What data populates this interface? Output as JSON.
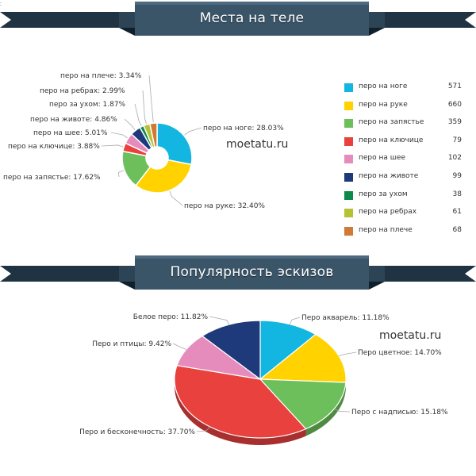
{
  "stray_mark": ":",
  "colors": {
    "banner": "#3a5468",
    "banner_tail": "#1f3343",
    "page_bg": "#ffffff"
  },
  "watermark": "moetatu.ru",
  "chart_data": [
    {
      "type": "pie",
      "variant": "donut",
      "title": "Места на теле",
      "watermark": "moetatu.ru",
      "slices": [
        {
          "name": "перо на ноге",
          "value": 571,
          "percent": 28.03,
          "label": "перо на ноге: 28.03%",
          "color": "#13b5e1"
        },
        {
          "name": "перо на руке",
          "value": 660,
          "percent": 32.4,
          "label": "перо на руке: 32.40%",
          "color": "#ffd200"
        },
        {
          "name": "перо на запястье",
          "value": 359,
          "percent": 17.62,
          "label": "перо на запястье: 17.62%",
          "color": "#6cbf5a"
        },
        {
          "name": "перо на ключице",
          "value": 79,
          "percent": 3.88,
          "label": "перо на ключице: 3.88%",
          "color": "#e8413e"
        },
        {
          "name": "перо на шее",
          "value": 102,
          "percent": 5.01,
          "label": "перо на шее: 5.01%",
          "color": "#e58cbd"
        },
        {
          "name": "перо на животе",
          "value": 99,
          "percent": 4.86,
          "label": "перо на животе: 4.86%",
          "color": "#1f3a7a"
        },
        {
          "name": "перо за ухом",
          "value": 38,
          "percent": 1.87,
          "label": "перо за ухом: 1.87%",
          "color": "#0b8a4a"
        },
        {
          "name": "перо на ребрах",
          "value": 61,
          "percent": 2.99,
          "label": "перо на ребрах: 2.99%",
          "color": "#b4c233"
        },
        {
          "name": "перо на плече",
          "value": 68,
          "percent": 3.34,
          "label": "перо на плече: 3.34%",
          "color": "#d07a36"
        }
      ],
      "legend": {
        "placement": "right",
        "items": [
          {
            "name": "перо на ноге",
            "value": "571",
            "color": "#13b5e1"
          },
          {
            "name": "перо на руке",
            "value": "660",
            "color": "#ffd200"
          },
          {
            "name": "перо на запястье",
            "value": "359",
            "color": "#6cbf5a"
          },
          {
            "name": "перо на ключице",
            "value": "79",
            "color": "#e8413e"
          },
          {
            "name": "перо на шее",
            "value": "102",
            "color": "#e58cbd"
          },
          {
            "name": "перо на животе",
            "value": "99",
            "color": "#1f3a7a"
          },
          {
            "name": "перо за ухом",
            "value": "38",
            "color": "#0b8a4a"
          },
          {
            "name": "перо на ребрах",
            "value": "61",
            "color": "#b4c233"
          },
          {
            "name": "перо на плече",
            "value": "68",
            "color": "#d07a36"
          }
        ]
      }
    },
    {
      "type": "pie",
      "variant": "3d",
      "title": "Популярность эскизов",
      "watermark": "moetatu.ru",
      "slices": [
        {
          "name": "Перо акварель",
          "percent": 11.18,
          "label": "Перо акварель: 11.18%",
          "color": "#13b5e1"
        },
        {
          "name": "Перо цветное",
          "percent": 14.7,
          "label": "Перо цветное: 14.70%",
          "color": "#ffd200"
        },
        {
          "name": "Перо с надписью",
          "percent": 15.18,
          "label": "Перо с надписью: 15.18%",
          "color": "#6cbf5a"
        },
        {
          "name": "Перо и бесконечность",
          "percent": 37.7,
          "label": "Перо и бесконечность: 37.70%",
          "color": "#e8413e"
        },
        {
          "name": "Перо и птицы",
          "percent": 9.42,
          "label": "Перо и птицы: 9.42%",
          "color": "#e58cbd"
        },
        {
          "name": "Белое перо",
          "percent": 11.82,
          "label": "Белое перо: 11.82%",
          "color": "#1f3a7a"
        }
      ]
    }
  ]
}
